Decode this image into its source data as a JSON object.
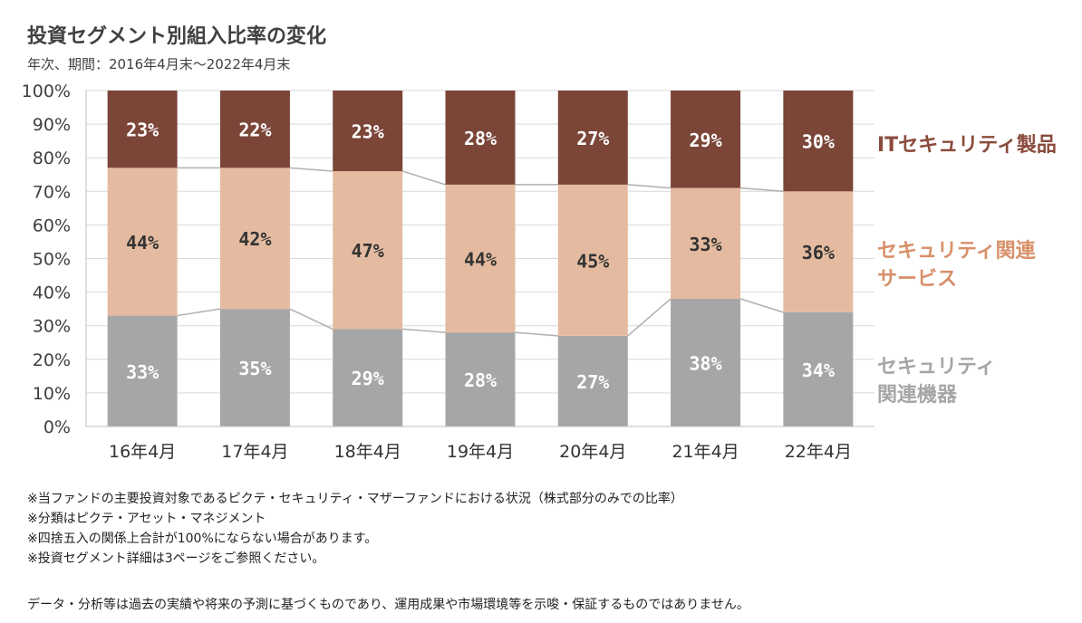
{
  "chart_data": {
    "type": "bar",
    "stacked": true,
    "title": "投資セグメント別組入比率の変化",
    "subtitle": "年次、期間：2016年4月末～2022年4月末",
    "categories": [
      "16年4月",
      "17年4月",
      "18年4月",
      "19年4月",
      "20年4月",
      "21年4月",
      "22年4月"
    ],
    "ylim": [
      0,
      100
    ],
    "yticks": [
      "0%",
      "10%",
      "20%",
      "30%",
      "40%",
      "50%",
      "60%",
      "70%",
      "80%",
      "90%",
      "100%"
    ],
    "grid": true,
    "legend_position": "right",
    "series": [
      {
        "name": "セキュリティ関連機器",
        "legend_lines": [
          "セキュリティ",
          "関連機器"
        ],
        "color": "#a6a6a6",
        "label_color": "#ffffff",
        "values": [
          33,
          35,
          29,
          28,
          27,
          38,
          34
        ],
        "labels": [
          "33%",
          "35%",
          "29%",
          "28%",
          "27%",
          "38%",
          "34%"
        ]
      },
      {
        "name": "セキュリティ関連サービス",
        "legend_lines": [
          "セキュリティ関連",
          "サービス"
        ],
        "color": "#e4bba0",
        "label_color": "#333333",
        "values": [
          44,
          42,
          47,
          44,
          45,
          33,
          36
        ],
        "labels": [
          "44%",
          "42%",
          "47%",
          "44%",
          "45%",
          "33%",
          "36%"
        ]
      },
      {
        "name": "ITセキュリティ製品",
        "legend_lines": [
          "ITセキュリティ製品"
        ],
        "color": "#7b4538",
        "label_color": "#ffffff",
        "values": [
          23,
          22,
          23,
          28,
          27,
          29,
          30
        ],
        "labels": [
          "23%",
          "22%",
          "23%",
          "28%",
          "27%",
          "29%",
          "30%"
        ]
      }
    ]
  },
  "legend_colors": [
    "#a6a6a6",
    "#d9906a",
    "#8a4b3c"
  ],
  "notes": [
    "※当ファンドの主要投資対象であるピクテ・セキュリティ・マザーファンドにおける状況（株式部分のみでの比率）",
    "※分類はピクテ・アセット・マネジメント",
    "※四捨五入の関係上合計が100%にならない場合があります。",
    "※投資セグメント詳細は3ページをご参照ください。"
  ],
  "disclaimer": "データ・分析等は過去の実績や将来の予測に基づくものであり、運用成果や市場環境等を示唆・保証するものではありません。"
}
